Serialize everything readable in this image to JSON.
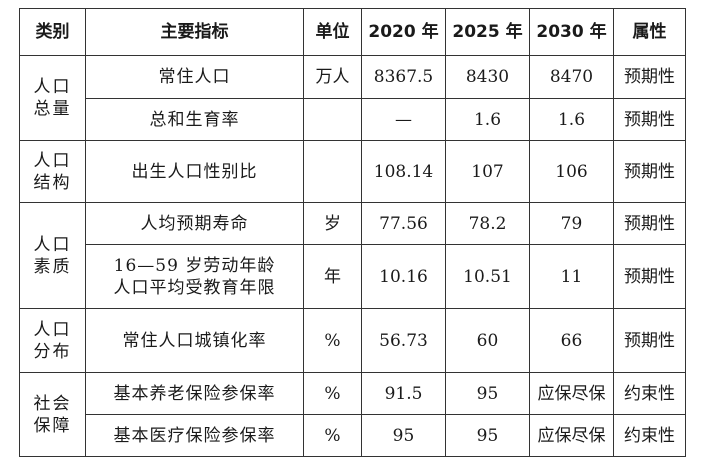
{
  "headers": {
    "category": "类别",
    "indicator": "主要指标",
    "unit": "单位",
    "y2020": "2020 年",
    "y2025": "2025 年",
    "y2030": "2030 年",
    "attribute": "属性"
  },
  "groups": [
    {
      "category": [
        "人口",
        "总量"
      ],
      "rows": [
        {
          "indicator": "常住人口",
          "unit": "万人",
          "y2020": "8367.5",
          "y2025": "8430",
          "y2030": "8470",
          "attribute": "预期性"
        },
        {
          "indicator": "总和生育率",
          "unit": "",
          "y2020": "—",
          "y2025": "1.6",
          "y2030": "1.6",
          "attribute": "预期性"
        }
      ]
    },
    {
      "category": [
        "人口",
        "结构"
      ],
      "rows": [
        {
          "indicator": "出生人口性别比",
          "unit": "",
          "y2020": "108.14",
          "y2025": "107",
          "y2030": "106",
          "attribute": "预期性"
        }
      ]
    },
    {
      "category": [
        "人口",
        "素质"
      ],
      "rows": [
        {
          "indicator": "人均预期寿命",
          "unit": "岁",
          "y2020": "77.56",
          "y2025": "78.2",
          "y2030": "79",
          "attribute": "预期性"
        },
        {
          "indicator": [
            "16—59 岁劳动年龄",
            "人口平均受教育年限"
          ],
          "unit": "年",
          "y2020": "10.16",
          "y2025": "10.51",
          "y2030": "11",
          "attribute": "预期性"
        }
      ]
    },
    {
      "category": [
        "人口",
        "分布"
      ],
      "rows": [
        {
          "indicator": "常住人口城镇化率",
          "unit": "%",
          "y2020": "56.73",
          "y2025": "60",
          "y2030": "66",
          "attribute": "预期性"
        }
      ]
    },
    {
      "category": [
        "社会",
        "保障"
      ],
      "rows": [
        {
          "indicator": "基本养老保险参保率",
          "unit": "%",
          "y2020": "91.5",
          "y2025": "95",
          "y2030": "应保尽保",
          "attribute": "约束性"
        },
        {
          "indicator": "基本医疗保险参保率",
          "unit": "%",
          "y2020": "95",
          "y2025": "95",
          "y2030": "应保尽保",
          "attribute": "约束性"
        }
      ]
    }
  ]
}
